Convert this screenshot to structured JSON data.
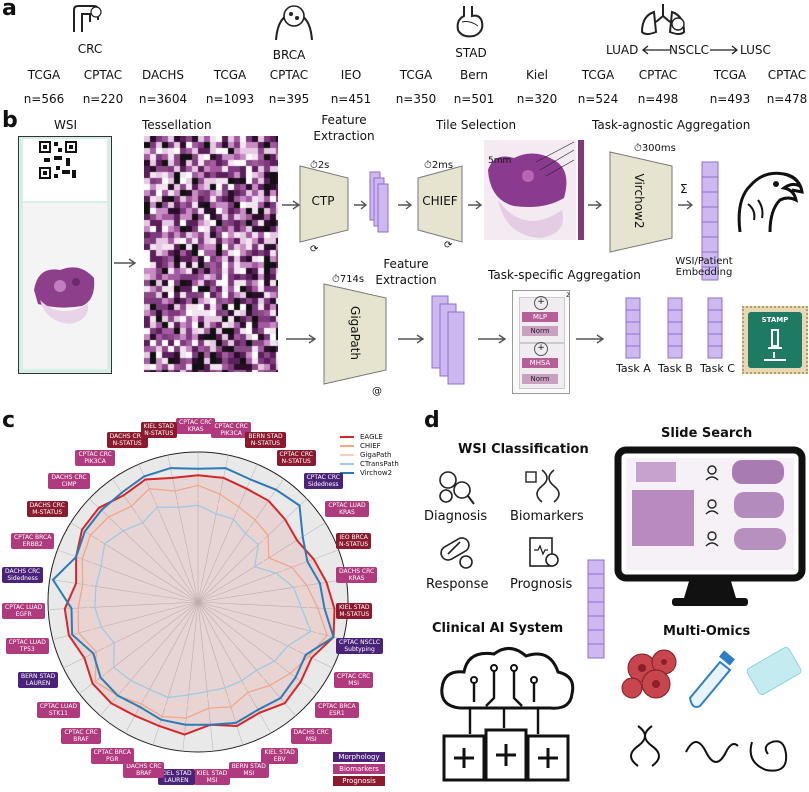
{
  "panel_labels": {
    "a": "a",
    "b": "b",
    "c": "c",
    "d": "d"
  },
  "panel_a": {
    "groups": [
      {
        "name": "CRC",
        "icon": "colon-icon"
      },
      {
        "name": "BRCA",
        "icon": "breast-cell-icon"
      },
      {
        "name": "STAD",
        "icon": "stomach-icon"
      },
      {
        "name": "NSCLC",
        "icon": "lungs-icon"
      }
    ],
    "nsclc_left": "LUAD",
    "nsclc_right": "LUSC",
    "cohorts": [
      {
        "name": "TCGA",
        "n": "n=566"
      },
      {
        "name": "CPTAC",
        "n": "n=220"
      },
      {
        "name": "DACHS",
        "n": "n=3604"
      },
      {
        "name": "TCGA",
        "n": "n=1093"
      },
      {
        "name": "CPTAC",
        "n": "n=395"
      },
      {
        "name": "IEO",
        "n": "n=451"
      },
      {
        "name": "TCGA",
        "n": "n=350"
      },
      {
        "name": "Bern",
        "n": "n=501"
      },
      {
        "name": "Kiel",
        "n": "n=320"
      },
      {
        "name": "TCGA",
        "n": "n=524"
      },
      {
        "name": "CPTAC",
        "n": "n=498"
      },
      {
        "name": "TCGA",
        "n": "n=493"
      },
      {
        "name": "CPTAC",
        "n": "n=478"
      }
    ]
  },
  "panel_b": {
    "wsi": "WSI",
    "tessellation": "Tessellation",
    "feature_extraction_1": "Feature\nExtraction",
    "tile_selection": "Tile Selection",
    "task_agnostic": "Task-agnostic Aggregation",
    "ctp": "CTP",
    "ctp_time": "2s",
    "chief": "CHIEF",
    "chief_time": "2ms",
    "virchow": "Virchow2",
    "virchow_time": "300ms",
    "sum": "Σ",
    "scale": "5mm",
    "wsi_embedding": "WSI/Patient\nEmbedding",
    "feature_extraction_2": "Feature\nExtraction",
    "gigapath": "GigaPath",
    "gigapath_time": "714s",
    "task_specific": "Task-specific Aggregation",
    "block_mlp": "MLP",
    "block_norm1": "Norm",
    "block_mhsa": "MHSA",
    "block_norm2": "Norm",
    "block_x2": "2",
    "tasks": [
      "Task A",
      "Task B",
      "Task C"
    ],
    "stamp": "STAMP"
  },
  "panel_c": {
    "legend": [
      {
        "name": "EAGLE",
        "color": "#d62728"
      },
      {
        "name": "CHIEF",
        "color": "#f4a582"
      },
      {
        "name": "GigaPath",
        "color": "#f7d0c0"
      },
      {
        "name": "CTransPath",
        "color": "#9ecae1"
      },
      {
        "name": "Virchow2",
        "color": "#2c7bb6"
      }
    ],
    "categories": [
      {
        "name": "Morphology",
        "color": "#4a2378"
      },
      {
        "name": "Biomarkers",
        "color": "#b03a7e"
      },
      {
        "name": "Prognosis",
        "color": "#8b1a2e"
      }
    ],
    "tasks": [
      {
        "label": "CPTAC CRC\nKRAS",
        "cat": "bio"
      },
      {
        "label": "CPTAC CRC\nPIK3CA",
        "cat": "bio"
      },
      {
        "label": "BERN STAD\nN-STATUS",
        "cat": "prog"
      },
      {
        "label": "CPTAC CRC\nN-STATUS",
        "cat": "prog"
      },
      {
        "label": "CPTAC CRC\nSidedness",
        "cat": "morph"
      },
      {
        "label": "CPTAC LUAD\nKRAS",
        "cat": "bio"
      },
      {
        "label": "IEO BRCA\nN-STATUS",
        "cat": "prog"
      },
      {
        "label": "DACHS CRC\nKRAS",
        "cat": "bio"
      },
      {
        "label": "KIEL STAD\nM-STATUS",
        "cat": "prog"
      },
      {
        "label": "CPTAC NSCLC\nSubtyping",
        "cat": "morph"
      },
      {
        "label": "CPTAC CRC\nMSI",
        "cat": "bio"
      },
      {
        "label": "CPTAC BRCA\nESR1",
        "cat": "bio"
      },
      {
        "label": "DACHS CRC\nMSI",
        "cat": "bio"
      },
      {
        "label": "KIEL STAD\nEBV",
        "cat": "bio"
      },
      {
        "label": "BERN STAD\nMSI",
        "cat": "bio"
      },
      {
        "label": "KIEL STAD\nMSI",
        "cat": "bio"
      },
      {
        "label": "KIEL STAD\nLAUREN",
        "cat": "morph"
      },
      {
        "label": "DACHS CRC\nBRAF",
        "cat": "bio"
      },
      {
        "label": "CPTAC BRCA\nPGR",
        "cat": "bio"
      },
      {
        "label": "CPTAC CRC\nBRAF",
        "cat": "bio"
      },
      {
        "label": "CPTAC LUAD\nSTK11",
        "cat": "bio"
      },
      {
        "label": "BERN STAD\nLAUREN",
        "cat": "morph"
      },
      {
        "label": "CPTAC LUAD\nTP53",
        "cat": "bio"
      },
      {
        "label": "CPTAC LUAD\nEGFR",
        "cat": "bio"
      },
      {
        "label": "DACHS CRC\nSidedness",
        "cat": "morph"
      },
      {
        "label": "CPTAC BRCA\nERBB2",
        "cat": "bio"
      },
      {
        "label": "DACHS CRC\nM-STATUS",
        "cat": "prog"
      },
      {
        "label": "DACHS CRC\nCIMP",
        "cat": "bio"
      },
      {
        "label": "CPTAC CRC\nPIK3CA",
        "cat": "bio"
      },
      {
        "label": "DACHS CRC\nN-STATUS",
        "cat": "prog"
      },
      {
        "label": "KIEL STAD\nN-STATUS",
        "cat": "prog"
      }
    ]
  },
  "chart_data": {
    "type": "radar",
    "series": [
      {
        "name": "EAGLE",
        "color": "#d62728",
        "values": [
          0.93,
          0.93,
          0.92,
          0.92,
          0.91,
          0.9,
          0.92,
          0.94,
          0.96,
          0.97,
          0.93,
          0.94,
          0.95,
          0.93,
          0.94,
          0.92,
          0.95,
          0.94,
          0.94,
          0.95,
          0.95,
          0.93,
          0.95,
          0.95,
          0.92,
          0.94,
          0.96,
          0.96,
          0.94,
          0.95,
          0.93
        ]
      },
      {
        "name": "CHIEF",
        "color": "#f4a582",
        "values": [
          0.9,
          0.88,
          0.86,
          0.85,
          0.84,
          0.8,
          0.85,
          0.88,
          0.91,
          0.95,
          0.92,
          0.9,
          0.88,
          0.86,
          0.88,
          0.87,
          0.9,
          0.91,
          0.9,
          0.92,
          0.94,
          0.89,
          0.92,
          0.91,
          0.9,
          0.92,
          0.93,
          0.92,
          0.9,
          0.92,
          0.89
        ]
      },
      {
        "name": "GigaPath",
        "color": "#f7d0c0",
        "values": [
          0.86,
          0.85,
          0.84,
          0.82,
          0.82,
          0.78,
          0.82,
          0.86,
          0.88,
          0.92,
          0.88,
          0.86,
          0.85,
          0.84,
          0.85,
          0.84,
          0.86,
          0.88,
          0.88,
          0.89,
          0.9,
          0.86,
          0.88,
          0.88,
          0.88,
          0.89,
          0.9,
          0.88,
          0.87,
          0.88,
          0.86
        ]
      },
      {
        "name": "CTransPath",
        "color": "#9ecae1",
        "values": [
          0.84,
          0.82,
          0.82,
          0.8,
          0.8,
          0.75,
          0.8,
          0.84,
          0.86,
          0.9,
          0.85,
          0.84,
          0.82,
          0.82,
          0.82,
          0.82,
          0.83,
          0.85,
          0.85,
          0.86,
          0.87,
          0.83,
          0.85,
          0.86,
          0.86,
          0.86,
          0.88,
          0.86,
          0.84,
          0.86,
          0.84
        ]
      },
      {
        "name": "Virchow2",
        "color": "#2c7bb6",
        "values": [
          0.95,
          0.96,
          0.95,
          0.96,
          0.97,
          0.92,
          0.9,
          0.92,
          0.93,
          0.97,
          0.91,
          0.92,
          0.93,
          0.92,
          0.93,
          0.92,
          0.92,
          0.92,
          0.91,
          0.92,
          0.92,
          0.9,
          0.94,
          0.93,
          0.99,
          0.94,
          0.95,
          0.95,
          0.95,
          0.96,
          0.96
        ]
      }
    ]
  },
  "panel_d": {
    "wsi_classification": "WSI Classification",
    "diagnosis": "Diagnosis",
    "biomarkers": "Biomarkers",
    "response": "Response",
    "prognosis": "Prognosis",
    "slide_search": "Slide Search",
    "clinical_ai": "Clinical AI System",
    "multi_omics": "Multi-Omics"
  }
}
